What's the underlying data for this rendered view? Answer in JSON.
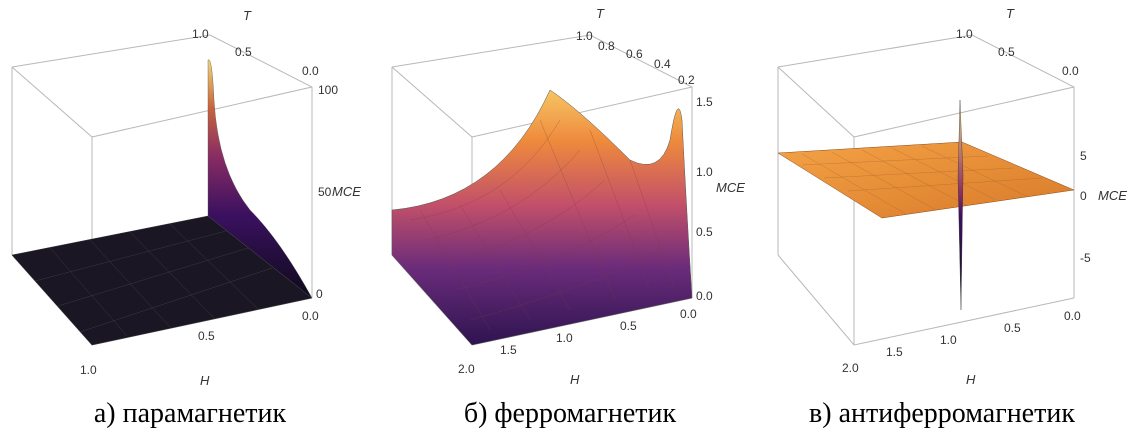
{
  "panels": [
    {
      "caption": "а) парамагнетик",
      "chart_data": {
        "type": "surface",
        "axes": {
          "x": {
            "label": "H",
            "ticks": [
              "0.0",
              "0.5",
              "1.0"
            ],
            "range": [
              0,
              1
            ]
          },
          "y": {
            "label": "T",
            "ticks": [
              "0.0",
              "0.5",
              "1.0"
            ],
            "range": [
              0,
              1
            ]
          },
          "z": {
            "label": "MCE",
            "ticks": [
              "0",
              "50",
              "100"
            ],
            "range": [
              0,
              100
            ]
          }
        },
        "description_points": [
          {
            "H": 0.0,
            "T": 1.0,
            "MCE": 100
          },
          {
            "H": 0.0,
            "T": 0.5,
            "MCE": 20
          },
          {
            "H": 0.0,
            "T": 0.0,
            "MCE": 0
          },
          {
            "H": 0.5,
            "T": 0.5,
            "MCE": 0
          },
          {
            "H": 1.0,
            "T": 1.0,
            "MCE": 0
          }
        ]
      }
    },
    {
      "caption": "б) ферромагнетик",
      "chart_data": {
        "type": "surface",
        "axes": {
          "x": {
            "label": "H",
            "ticks": [
              "0.0",
              "0.5",
              "1.0",
              "1.5",
              "2.0"
            ],
            "range": [
              0,
              2
            ]
          },
          "y": {
            "label": "T",
            "ticks": [
              "0.2",
              "0.4",
              "0.6",
              "0.8",
              "1.0"
            ],
            "range": [
              0.1,
              1
            ]
          },
          "z": {
            "label": "MCE",
            "ticks": [
              "0.0",
              "0.5",
              "1.0",
              "1.5"
            ],
            "range": [
              0,
              1.6
            ]
          }
        },
        "description_points": [
          {
            "H": 2.0,
            "T": 1.0,
            "MCE": 1.6
          },
          {
            "H": 0.1,
            "T": 0.2,
            "MCE": 1.55
          },
          {
            "H": 0.0,
            "T": 1.0,
            "MCE": 1.0
          },
          {
            "H": 2.0,
            "T": 0.1,
            "MCE": 0.0
          }
        ]
      }
    },
    {
      "caption": "в) антиферромагнетик",
      "chart_data": {
        "type": "surface",
        "axes": {
          "x": {
            "label": "H",
            "ticks": [
              "0.0",
              "0.5",
              "1.0",
              "1.5",
              "2.0"
            ],
            "range": [
              0,
              2
            ]
          },
          "y": {
            "label": "T",
            "ticks": [
              "0.0",
              "0.5",
              "1.0"
            ],
            "range": [
              0,
              1
            ]
          },
          "z": {
            "label": "MCE",
            "ticks": [
              "-5",
              "0",
              "5"
            ],
            "range": [
              -8,
              8
            ]
          }
        },
        "description_points": [
          {
            "H": 1.0,
            "T": 0.0,
            "MCE": 8
          },
          {
            "H": 1.0,
            "T": 0.0,
            "MCE": -8
          },
          {
            "H": 0.0,
            "T": 1.0,
            "MCE": 0.5
          },
          {
            "H": 2.0,
            "T": 1.0,
            "MCE": 0.5
          }
        ]
      }
    }
  ]
}
